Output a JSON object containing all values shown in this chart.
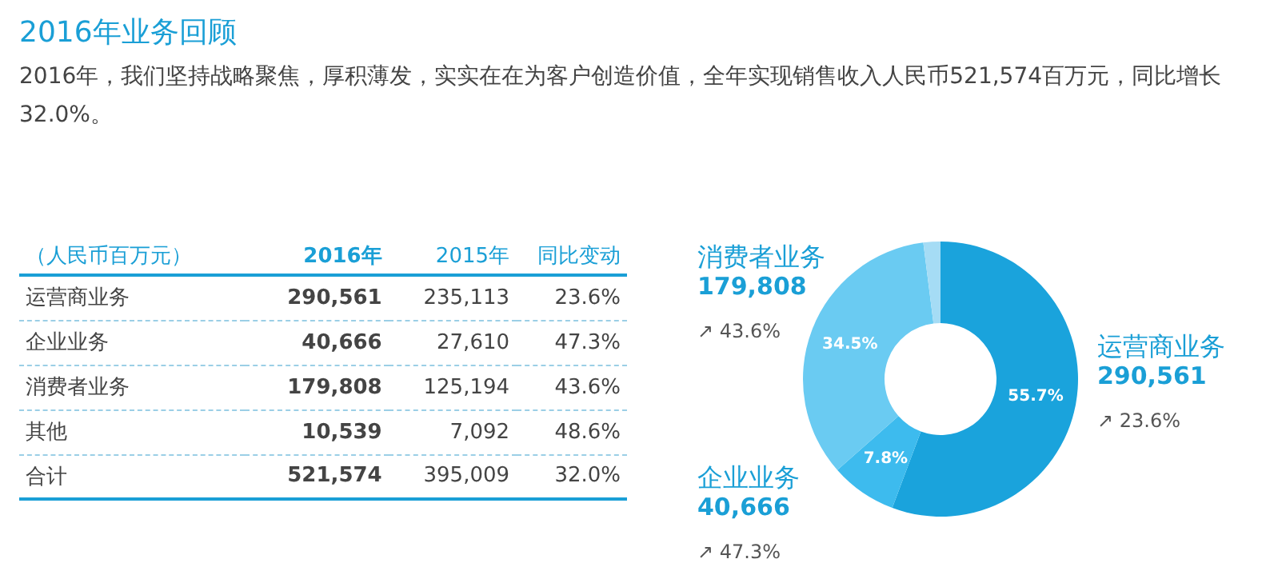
{
  "chart_data": [
    {
      "type": "other",
      "title": "2016年业务回顾",
      "subtitle": "2016年，我们坚持战略聚焦，厚积薄发，实实在在为客户创造价值，全年实现销售收入人民币521,574百万元，同比增长32.0%。",
      "annotations": [
        "（人民币百万元）",
        "2016年",
        "2015年",
        "同比变动",
        "运营商业务",
        "290,561",
        "235,113",
        "23.6%",
        "企业业务",
        "40,666",
        "27,610",
        "47.3%",
        "消费者业务",
        "179,808",
        "125,194",
        "43.6%",
        "其他",
        "10,539",
        "7,092",
        "48.6%",
        "合计",
        "521,574",
        "395,009",
        "32.0%"
      ]
    },
    {
      "type": "donut",
      "categories": [
        "运营商业务",
        "企业业务",
        "消费者业务",
        null
      ],
      "values": [
        55.7,
        7.8,
        34.5,
        2.0
      ],
      "colors": [
        "#1aa3dc",
        "#3dbbee",
        "#6acbf2",
        "#a5dcf5"
      ],
      "value_labels": [
        "55.7%",
        "7.8%",
        "34.5%",
        null
      ],
      "annotations": [
        "290,561",
        "↗ 23.6%",
        "40,666",
        "↗ 47.3%",
        "179,808",
        "↗ 43.6%"
      ]
    }
  ]
}
